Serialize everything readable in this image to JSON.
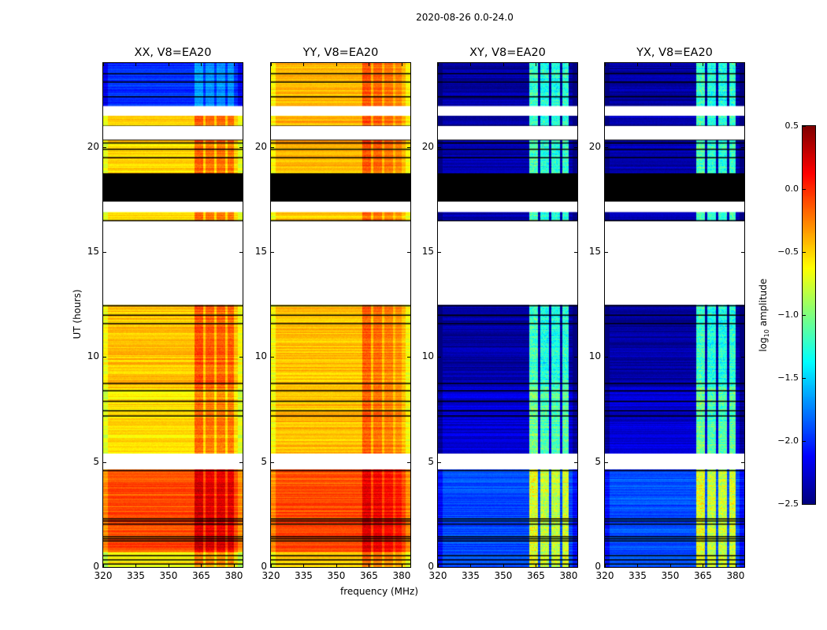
{
  "chart_data": {
    "type": "heatmap",
    "title": "2020-08-26 0.0-24.0",
    "xlabel": "frequency (MHz)",
    "ylabel": "UT (hours)",
    "xlim": [
      320,
      384
    ],
    "ylim": [
      0,
      24
    ],
    "xticks": [
      320,
      335,
      350,
      365,
      380
    ],
    "yticks": [
      0,
      5,
      10,
      15,
      20
    ],
    "colorbar": {
      "label": "log10 amplitude",
      "label_main": "log",
      "label_sub": "10",
      "label_rest": " amplitude",
      "range": [
        -2.5,
        0.5
      ],
      "ticks": [
        "0.5",
        "0.0",
        "−0.5",
        "−1.0",
        "−1.5",
        "−2.0",
        "−2.5"
      ],
      "tick_values": [
        0.5,
        0,
        -0.5,
        -1,
        -1.5,
        -2,
        -2.5
      ],
      "colormap": "jet"
    },
    "flagged_hours": [
      [
        4.65,
        5.4
      ],
      [
        12.5,
        16.45
      ],
      [
        16.9,
        17.35
      ],
      [
        20.35,
        21.0
      ],
      [
        21.5,
        21.95
      ]
    ],
    "black_block_hours": [
      17.4,
      18.75
    ],
    "black_line_hours": [
      0.15,
      0.35,
      0.55,
      1.25,
      1.35,
      1.45,
      2.05,
      2.2,
      2.3,
      4.6,
      7.2,
      7.45,
      7.9,
      8.4,
      8.75,
      11.6,
      12.0,
      12.45,
      16.5,
      19.5,
      19.9,
      20.2,
      20.35,
      21.0,
      22.4,
      23.1,
      23.5
    ],
    "panels": [
      {
        "title": "XX, V8=EA20",
        "segments": [
          [
            0,
            0.7,
            -0.6
          ],
          [
            0.7,
            4.65,
            -0.1
          ],
          [
            5.4,
            8.5,
            -0.55
          ],
          [
            8.5,
            12.5,
            -0.45
          ],
          [
            16.45,
            16.9,
            -0.5
          ],
          [
            18.75,
            21.5,
            -0.5
          ],
          [
            21.95,
            24,
            -2.0
          ]
        ],
        "rfi": [
          [
            362,
            366,
            0.35
          ],
          [
            367,
            371,
            0.3
          ],
          [
            372,
            376,
            0.3
          ],
          [
            377,
            380,
            0.3
          ]
        ]
      },
      {
        "title": "YY, V8=EA20",
        "segments": [
          [
            0,
            0.7,
            -0.45
          ],
          [
            0.7,
            4.65,
            -0.1
          ],
          [
            5.4,
            12.5,
            -0.45
          ],
          [
            16.45,
            16.9,
            -0.45
          ],
          [
            18.75,
            21.5,
            -0.4
          ],
          [
            21.95,
            24,
            -0.4
          ]
        ],
        "rfi": [
          [
            362,
            366,
            0.3
          ],
          [
            367,
            371,
            0.25
          ],
          [
            372,
            376,
            0.2
          ],
          [
            377,
            380,
            0.15
          ]
        ]
      },
      {
        "title": "XY, V8=EA20",
        "segments": [
          [
            0,
            4.65,
            -1.9
          ],
          [
            5.4,
            8.6,
            -2.25
          ],
          [
            8.6,
            12.5,
            -2.4
          ],
          [
            16.45,
            16.9,
            -2.35
          ],
          [
            18.75,
            21.5,
            -2.35
          ],
          [
            21.95,
            24,
            -2.4
          ]
        ],
        "rfi": [
          [
            362,
            366,
            1.2
          ],
          [
            367,
            371,
            1.1
          ],
          [
            372,
            376,
            1.1
          ],
          [
            377,
            380,
            1.15
          ]
        ]
      },
      {
        "title": "YX, V8=EA20",
        "segments": [
          [
            0,
            4.65,
            -1.9
          ],
          [
            5.4,
            8.6,
            -2.25
          ],
          [
            8.6,
            12.5,
            -2.4
          ],
          [
            16.45,
            16.9,
            -2.35
          ],
          [
            18.75,
            21.5,
            -2.35
          ],
          [
            21.95,
            24,
            -2.4
          ]
        ],
        "rfi": [
          [
            362,
            366,
            1.2
          ],
          [
            367,
            371,
            1.1
          ],
          [
            372,
            376,
            1.1
          ],
          [
            377,
            380,
            1.15
          ]
        ]
      }
    ]
  }
}
